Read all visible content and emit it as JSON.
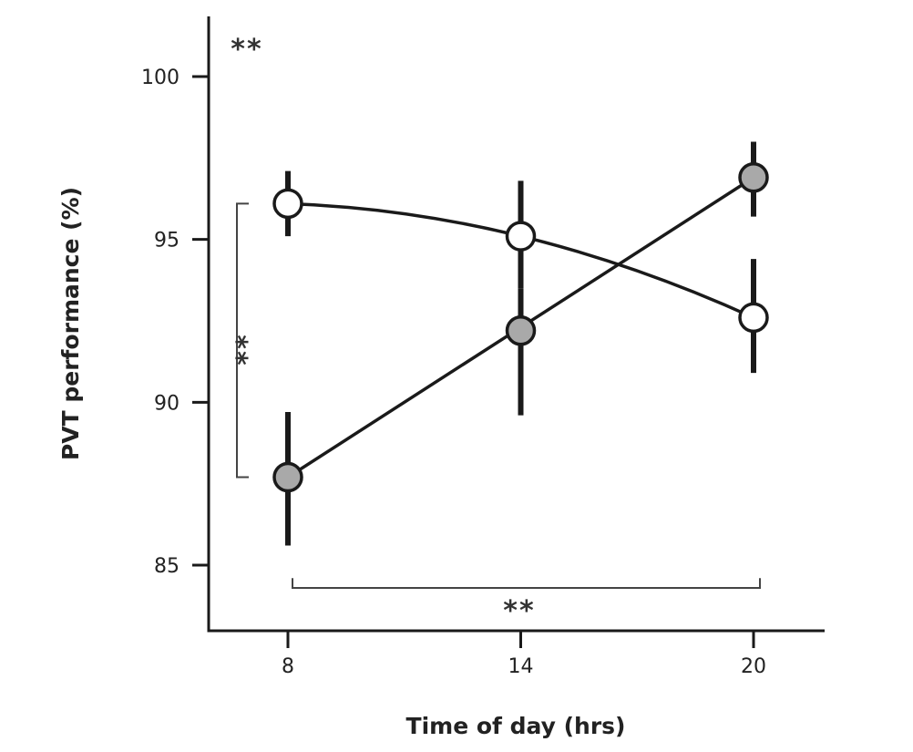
{
  "chart_data": {
    "type": "line",
    "xlabel": "Time of day (hrs)",
    "ylabel": "PVT performance (%)",
    "x": [
      8,
      14,
      20
    ],
    "x_ticks": [
      "8",
      "14",
      "20"
    ],
    "y_ticks": [
      "85",
      "90",
      "95",
      "100"
    ],
    "ylim": [
      83,
      102
    ],
    "grid": false,
    "legend": "none",
    "series": [
      {
        "marker": "open-circle",
        "values": [
          96.1,
          95.1,
          92.6
        ],
        "error_low": [
          95.1,
          93.5,
          90.9
        ],
        "error_high": [
          97.1,
          96.8,
          94.4
        ],
        "fit": "curve",
        "fill_color": "#ffffff"
      },
      {
        "marker": "filled-circle",
        "values": [
          87.7,
          92.2,
          96.9
        ],
        "error_low": [
          85.6,
          89.6,
          95.7
        ],
        "error_high": [
          89.7,
          93.5,
          98.0
        ],
        "fit": "straight",
        "fill_color": "#a9a9a9"
      }
    ],
    "annotations": [
      {
        "text": "**",
        "role": "top-left"
      },
      {
        "text": "**",
        "role": "bracket-at-8"
      },
      {
        "text": "**",
        "role": "bracket-8-to-20"
      }
    ]
  }
}
